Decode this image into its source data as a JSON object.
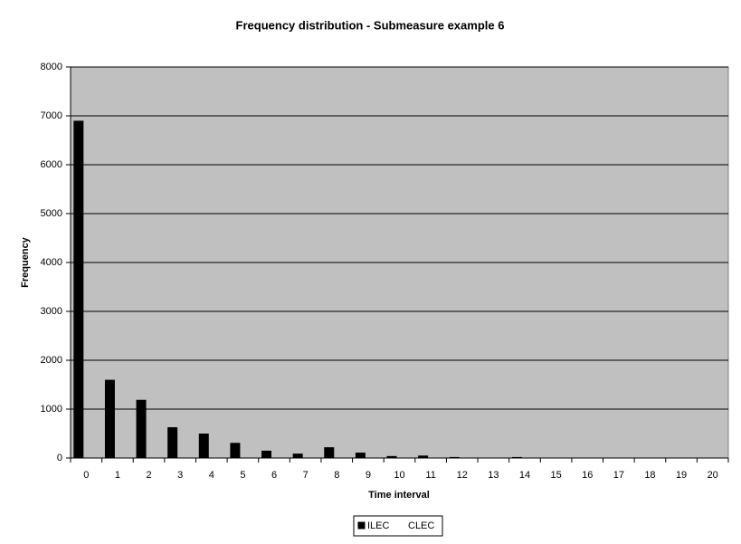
{
  "chart_data": {
    "type": "bar",
    "title": "Frequency distribution - Submeasure example 6",
    "x_label": "Time interval",
    "y_label": "Frequency",
    "categories": [
      "0",
      "1",
      "2",
      "3",
      "4",
      "5",
      "6",
      "7",
      "8",
      "9",
      "10",
      "11",
      "12",
      "13",
      "14",
      "15",
      "16",
      "17",
      "18",
      "19",
      "20"
    ],
    "series": [
      {
        "name": "ILEC",
        "color": "#000000",
        "values": [
          6900,
          1600,
          1190,
          630,
          500,
          310,
          150,
          90,
          220,
          110,
          40,
          50,
          20,
          5,
          20,
          5,
          0,
          0,
          0,
          0,
          0
        ]
      },
      {
        "name": "CLEC",
        "color": "#ffffff",
        "values": [
          0,
          0,
          0,
          0,
          0,
          0,
          0,
          0,
          0,
          0,
          0,
          0,
          0,
          0,
          0,
          0,
          0,
          0,
          0,
          0,
          0
        ]
      }
    ],
    "ylim": [
      0,
      8000
    ],
    "yticks": [
      0,
      1000,
      2000,
      3000,
      4000,
      5000,
      6000,
      7000,
      8000
    ],
    "grid": true,
    "plot_background": "#c0c0c0",
    "legend_position": "bottom"
  }
}
